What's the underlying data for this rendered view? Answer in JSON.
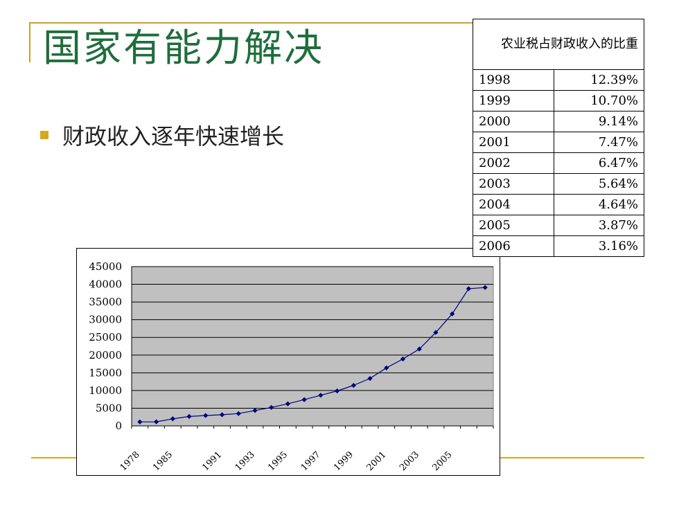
{
  "slide": {
    "title": "国家有能力解决",
    "bullet": "财政收入逐年快速增长"
  },
  "table": {
    "header": "农业税占财政收入的比重",
    "rows": [
      {
        "year": "1998",
        "pct": "12.39%"
      },
      {
        "year": "1999",
        "pct": "10.70%"
      },
      {
        "year": "2000",
        "pct": "9.14%"
      },
      {
        "year": "2001",
        "pct": "7.47%"
      },
      {
        "year": "2002",
        "pct": "6.47%"
      },
      {
        "year": "2003",
        "pct": "5.64%"
      },
      {
        "year": "2004",
        "pct": "4.64%"
      },
      {
        "year": "2005",
        "pct": "3.87%"
      },
      {
        "year": "2006",
        "pct": "3.16%"
      }
    ]
  },
  "colors": {
    "title": "#1f6e3c",
    "accent": "#d6a822",
    "plot_background": "#c0c0c0",
    "series": "#000080"
  },
  "chart_data": {
    "type": "line",
    "x": [
      "1978",
      "1980",
      "1985",
      "1989",
      "1990",
      "1991",
      "1992",
      "1993",
      "1994",
      "1995",
      "1996",
      "1997",
      "1998",
      "1999",
      "2000",
      "2001",
      "2002",
      "2003",
      "2004",
      "2005",
      "2006",
      "2007"
    ],
    "x_tick_labels": [
      "1978",
      "1985",
      "1991",
      "1993",
      "1995",
      "1997",
      "1999",
      "2001",
      "2003",
      "2005"
    ],
    "y_ticks": [
      0,
      5000,
      10000,
      15000,
      20000,
      25000,
      30000,
      35000,
      40000,
      45000
    ],
    "ylim": [
      0,
      45000
    ],
    "grid": true,
    "series": [
      {
        "values": [
          1132,
          1160,
          2005,
          2665,
          2937,
          3149,
          3483,
          4349,
          5218,
          6242,
          7408,
          8651,
          9876,
          11444,
          13395,
          16386,
          18904,
          21715,
          26396,
          31649,
          38760,
          39100
        ]
      }
    ]
  }
}
